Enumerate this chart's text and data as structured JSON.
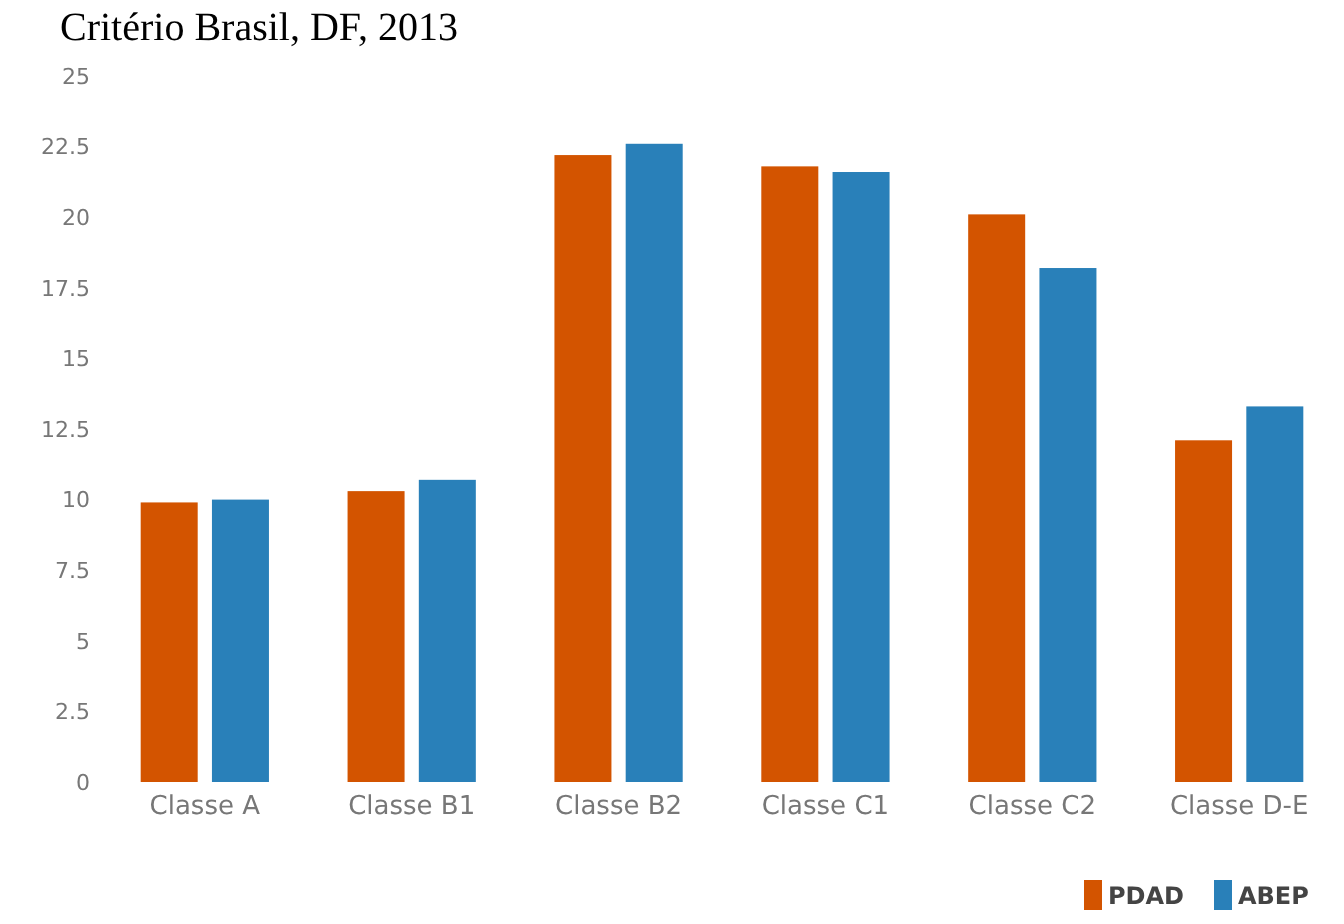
{
  "chart_data": {
    "type": "bar",
    "title": "Critério Brasil, DF, 2013",
    "categories": [
      "Classe A",
      "Classe B1",
      "Classe B2",
      "Classe C1",
      "Classe C2",
      "Classe D-E"
    ],
    "series": [
      {
        "name": "PDAD",
        "color": "#d35400",
        "values": [
          9.9,
          10.3,
          22.2,
          21.8,
          20.1,
          12.1
        ]
      },
      {
        "name": "ABEP",
        "color": "#2980b9",
        "values": [
          10.0,
          10.7,
          22.6,
          21.6,
          18.2,
          13.3
        ]
      }
    ],
    "ylim": [
      0,
      25
    ],
    "yticks": [
      0,
      2.5,
      5,
      7.5,
      10,
      12.5,
      15,
      17.5,
      20,
      22.5,
      25
    ],
    "legend": "bottom right",
    "grid": false
  }
}
